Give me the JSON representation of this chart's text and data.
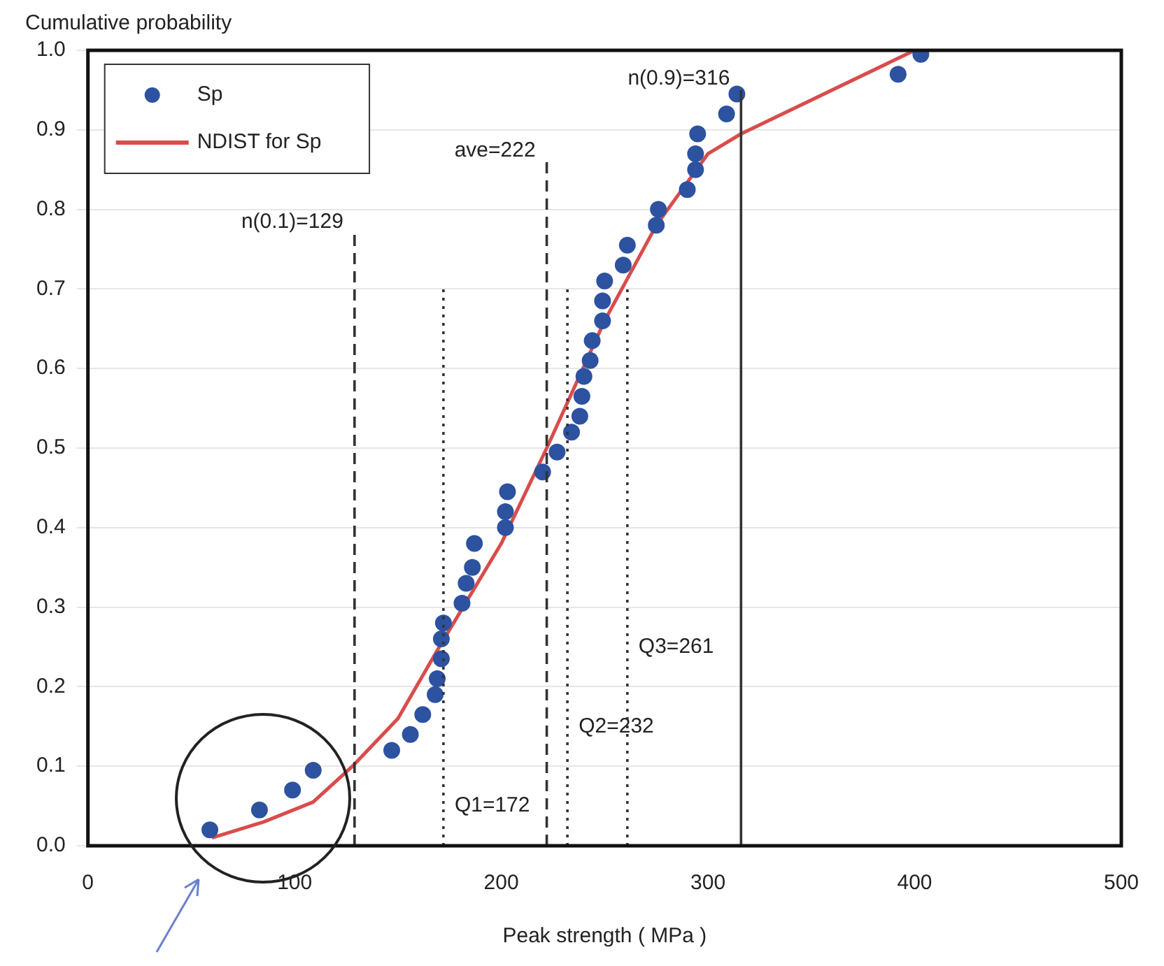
{
  "chart_data": {
    "type": "scatter",
    "ylabel": "Cumulative probability",
    "xlabel": "Peak strength ( MPa )",
    "xlim": [
      0,
      500
    ],
    "xticks": [
      0,
      100,
      200,
      300,
      400,
      500
    ],
    "ylim": [
      0,
      1
    ],
    "yticks": [
      {
        "value": 0,
        "label": "0.0"
      },
      {
        "value": 0.1,
        "label": "0.1"
      },
      {
        "value": 0.2,
        "label": "0.2"
      },
      {
        "value": 0.3,
        "label": "0.3"
      },
      {
        "value": 0.4,
        "label": "0.4"
      },
      {
        "value": 0.5,
        "label": "0.5"
      },
      {
        "value": 0.6,
        "label": "0.6"
      },
      {
        "value": 0.7,
        "label": "0.7"
      },
      {
        "value": 0.8,
        "label": "0.8"
      },
      {
        "value": 0.9,
        "label": "0.9"
      },
      {
        "value": 1,
        "label": "1.0"
      }
    ],
    "grid": "y",
    "legend": "top left",
    "series": [
      {
        "name": "Sp",
        "marker": "circle",
        "color": "#2d52a0",
        "x": [
          59,
          83,
          99,
          109,
          147,
          156,
          162,
          168,
          169,
          171,
          171,
          172,
          181,
          183,
          186,
          187,
          202,
          202,
          203,
          220,
          227,
          234,
          238,
          239,
          240,
          243,
          244,
          249,
          249,
          250,
          259,
          261,
          275,
          276,
          290,
          294,
          294,
          295,
          309,
          314,
          392,
          403
        ],
        "values": [
          0.02,
          0.045,
          0.07,
          0.095,
          0.12,
          0.14,
          0.165,
          0.19,
          0.21,
          0.235,
          0.26,
          0.28,
          0.305,
          0.33,
          0.35,
          0.38,
          0.4,
          0.42,
          0.445,
          0.47,
          0.495,
          0.52,
          0.54,
          0.565,
          0.59,
          0.61,
          0.635,
          0.66,
          0.685,
          0.71,
          0.73,
          0.755,
          0.78,
          0.8,
          0.825,
          0.85,
          0.87,
          0.895,
          0.92,
          0.945,
          0.97,
          0.995
        ]
      },
      {
        "name": "NDIST for Sp",
        "type": "line",
        "marker": "none",
        "line_style": "solid",
        "color": "#d94c4c",
        "x": [
          60,
          85,
          109,
          128,
          150,
          170,
          200,
          222,
          250,
          275,
          300,
          316,
          400
        ],
        "values": [
          0.01,
          0.03,
          0.055,
          0.1,
          0.16,
          0.25,
          0.38,
          0.5,
          0.66,
          0.78,
          0.87,
          0.895,
          1.0
        ]
      }
    ],
    "ref_lines": [
      {
        "axis": "x",
        "value": 129,
        "line_style": "dashed",
        "color": "#333333",
        "label": "n(0.1)=129"
      },
      {
        "axis": "x",
        "value": 222,
        "line_style": "dashed",
        "color": "#333333",
        "label": "ave=222"
      },
      {
        "axis": "x",
        "value": 172,
        "line_style": "dotted",
        "color": "#333333",
        "label": "Q1=172"
      },
      {
        "axis": "x",
        "value": 232,
        "line_style": "dotted",
        "color": "#333333",
        "label": "Q2=232"
      },
      {
        "axis": "x",
        "value": 261,
        "line_style": "dotted",
        "color": "#333333",
        "label": "Q3=261"
      },
      {
        "axis": "x",
        "value": 316,
        "line_style": "solid",
        "color": "#333333",
        "label": "n(0.9)=316"
      }
    ]
  }
}
